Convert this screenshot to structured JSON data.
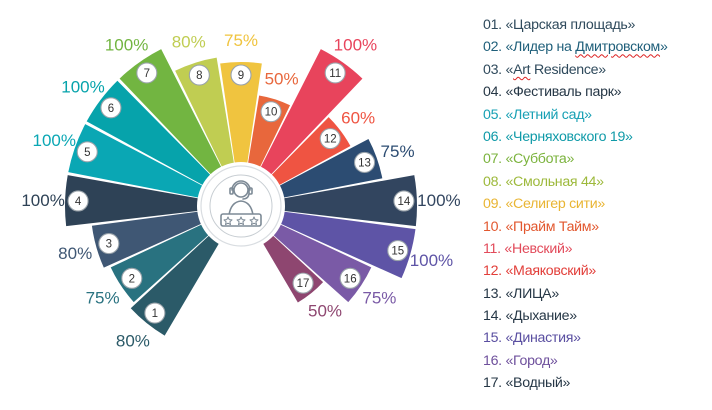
{
  "chart_data": {
    "type": "polar-bar",
    "max": 100,
    "categories": [
      "1",
      "2",
      "3",
      "4",
      "5",
      "6",
      "7",
      "8",
      "9",
      "10",
      "11",
      "12",
      "13",
      "14",
      "15",
      "16",
      "17"
    ],
    "values": [
      80,
      75,
      80,
      100,
      100,
      100,
      100,
      80,
      75,
      50,
      100,
      60,
      75,
      100,
      100,
      75,
      50
    ],
    "value_labels": [
      "80%",
      "75%",
      "80%",
      "100%",
      "100%",
      "100%",
      "100%",
      "80%",
      "75%",
      "50%",
      "100%",
      "60%",
      "75%",
      "100%",
      "100%",
      "75%",
      "50%"
    ],
    "colors": [
      "#2b5a68",
      "#297280",
      "#3f5774",
      "#2e4256",
      "#0aa7b4",
      "#06a3ab",
      "#72b541",
      "#c0cd52",
      "#f0c43f",
      "#e8673c",
      "#e8445c",
      "#ef5442",
      "#2c4c72",
      "#32455f",
      "#5e54a6",
      "#7a5aa6",
      "#8e4670"
    ],
    "center_icon": "customer-rating-icon",
    "legend": [
      {
        "label": "01. «Царская площадь»",
        "color": "#2f4a5c"
      },
      {
        "label": "02. «Лидер на Дмитровском»",
        "color": "#1f5f7a"
      },
      {
        "label": "03. «Art Residence»",
        "color": "#2f4a5c"
      },
      {
        "label": "04. «Фестиваль парк»",
        "color": "#263746"
      },
      {
        "label": "05. «Летний сад»",
        "color": "#17a0b4"
      },
      {
        "label": "06. «Черняховского 19»",
        "color": "#0f9aa8"
      },
      {
        "label": "07. «Суббота»",
        "color": "#7bb33d"
      },
      {
        "label": "08. «Смольная 44»",
        "color": "#9db93b"
      },
      {
        "label": "09. «Селигер сити»",
        "color": "#e9b533"
      },
      {
        "label": "10. «Прайм Тайм»",
        "color": "#e2572e"
      },
      {
        "label": "11. «Невский»",
        "color": "#e24a5a"
      },
      {
        "label": "12. «Маяковский»",
        "color": "#e23e39"
      },
      {
        "label": "13. «ЛИЦА»",
        "color": "#263746"
      },
      {
        "label": "14. «Дыхание»",
        "color": "#263746"
      },
      {
        "label": "15. «Династия»",
        "color": "#5a4fa1"
      },
      {
        "label": "16. «Город»",
        "color": "#6e509c"
      },
      {
        "label": "17. «Водный»",
        "color": "#263746"
      }
    ]
  }
}
